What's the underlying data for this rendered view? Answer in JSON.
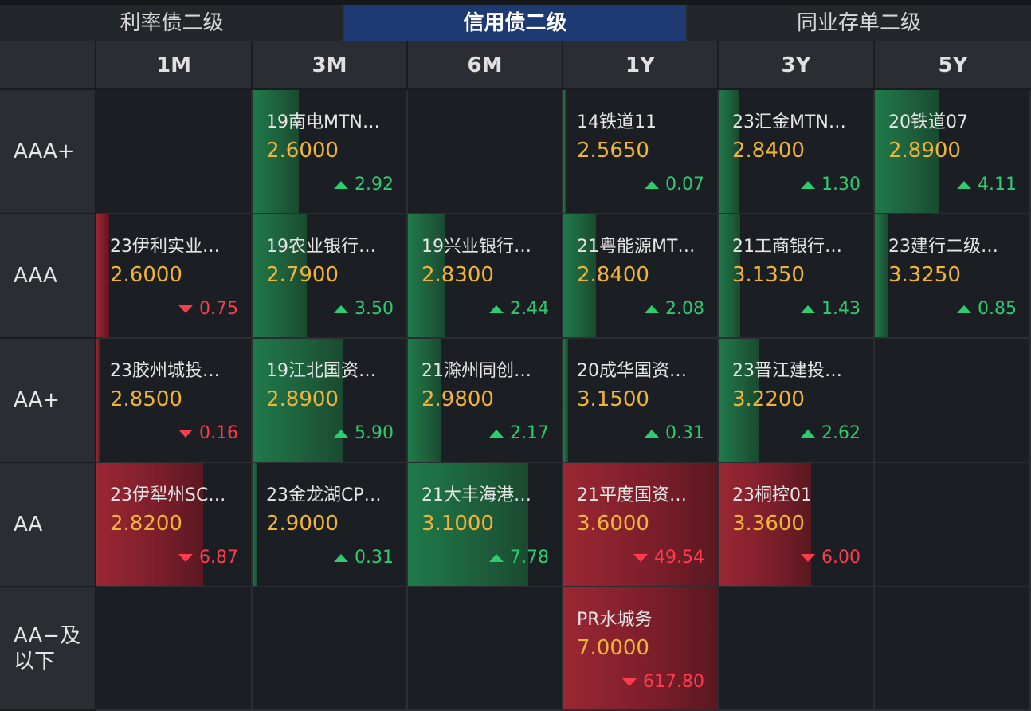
{
  "tabs": [
    {
      "label": "利率债二级",
      "active": false
    },
    {
      "label": "信用债二级",
      "active": true
    },
    {
      "label": "同业存单二级",
      "active": false
    }
  ],
  "columns": [
    "1M",
    "3M",
    "6M",
    "1Y",
    "3Y",
    "5Y"
  ],
  "rows": [
    {
      "rating": "AAA+",
      "cells": [
        null,
        {
          "name": "19南电MTN…",
          "yield": "2.6000",
          "change": "2.92",
          "dir": "up",
          "fill": 0.3
        },
        null,
        {
          "name": "14铁道11",
          "yield": "2.5650",
          "change": "0.07",
          "dir": "up",
          "fill": 0.0
        },
        {
          "name": "23汇金MTN…",
          "yield": "2.8400",
          "change": "1.30",
          "dir": "up",
          "fill": 0.13
        },
        {
          "name": "20铁道07",
          "yield": "2.8900",
          "change": "4.11",
          "dir": "up",
          "fill": 0.41
        }
      ]
    },
    {
      "rating": "AAA",
      "cells": [
        {
          "name": "23伊利实业…",
          "yield": "2.6000",
          "change": "0.75",
          "dir": "down",
          "fill": 0.08
        },
        {
          "name": "19农业银行…",
          "yield": "2.7900",
          "change": "3.50",
          "dir": "up",
          "fill": 0.35
        },
        {
          "name": "19兴业银行…",
          "yield": "2.8300",
          "change": "2.44",
          "dir": "up",
          "fill": 0.24
        },
        {
          "name": "21粤能源MT…",
          "yield": "2.8400",
          "change": "2.08",
          "dir": "up",
          "fill": 0.21
        },
        {
          "name": "21工商银行…",
          "yield": "3.1350",
          "change": "1.43",
          "dir": "up",
          "fill": 0.14
        },
        {
          "name": "23建行二级…",
          "yield": "3.3250",
          "change": "0.85",
          "dir": "up",
          "fill": 0.085
        }
      ]
    },
    {
      "rating": "AA+",
      "cells": [
        {
          "name": "23胶州城投…",
          "yield": "2.8500",
          "change": "0.16",
          "dir": "down",
          "fill": 0.02
        },
        {
          "name": "19江北国资…",
          "yield": "2.8900",
          "change": "5.90",
          "dir": "up",
          "fill": 0.59
        },
        {
          "name": "21滁州同创…",
          "yield": "2.9800",
          "change": "2.17",
          "dir": "up",
          "fill": 0.22
        },
        {
          "name": "20成华国资…",
          "yield": "3.1500",
          "change": "0.31",
          "dir": "up",
          "fill": 0.03
        },
        {
          "name": "23晋江建投…",
          "yield": "3.2200",
          "change": "2.62",
          "dir": "up",
          "fill": 0.26
        },
        null
      ]
    },
    {
      "rating": "AA",
      "cells": [
        {
          "name": "23伊犁州SC…",
          "yield": "2.8200",
          "change": "6.87",
          "dir": "down",
          "fill": 0.69
        },
        {
          "name": "23金龙湖CP…",
          "yield": "2.9000",
          "change": "0.31",
          "dir": "up",
          "fill": 0.03
        },
        {
          "name": "21大丰海港…",
          "yield": "3.1000",
          "change": "7.78",
          "dir": "up",
          "fill": 0.78
        },
        {
          "name": "21平度国资…",
          "yield": "3.6000",
          "change": "49.54",
          "dir": "down",
          "fill": 1.0
        },
        {
          "name": "23桐控01",
          "yield": "3.3600",
          "change": "6.00",
          "dir": "down",
          "fill": 0.6
        },
        null
      ]
    },
    {
      "rating": "AA−及以下",
      "cells": [
        null,
        null,
        null,
        {
          "name": "PR水城务",
          "yield": "7.0000",
          "change": "617.80",
          "dir": "down",
          "fill": 1.0
        },
        null,
        null
      ]
    }
  ],
  "colors": {
    "up": "#2ecc71",
    "down": "#ff3b4e",
    "yield": "#f0b43a",
    "active_tab": "#1f3a72"
  }
}
